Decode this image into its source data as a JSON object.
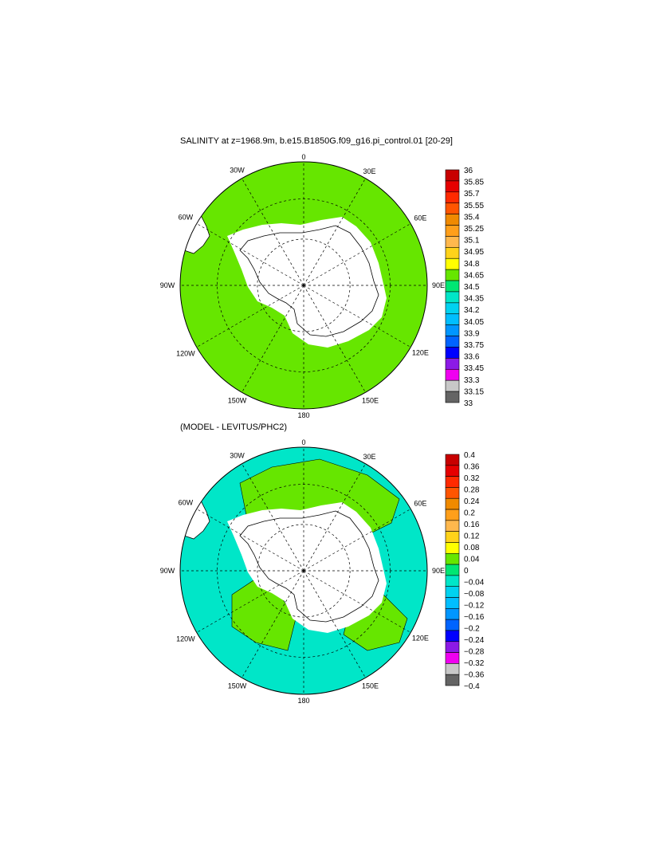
{
  "panels": [
    {
      "title": "SALINITY at z=1968.9m, b.e15.B1850G.f09_g16.pi_control.01 [20-29]",
      "lon_labels": {
        "top": "0",
        "bottom": "180",
        "left": "90W",
        "right": "90E",
        "w30": "30W",
        "w60": "60W",
        "w120": "120W",
        "w150": "150W",
        "e30": "30E",
        "e60": "60E",
        "e120": "120E",
        "e150": "150E"
      },
      "ocean_color": "#66e600",
      "colorbar": {
        "labels": [
          "36",
          "35.85",
          "35.7",
          "35.55",
          "35.4",
          "35.25",
          "35.1",
          "34.95",
          "34.8",
          "34.65",
          "34.5",
          "34.35",
          "34.2",
          "34.05",
          "33.9",
          "33.75",
          "33.6",
          "33.45",
          "33.3",
          "33.15",
          "33"
        ],
        "colors": [
          "#c80000",
          "#e60000",
          "#ff2a00",
          "#ff5500",
          "#f08a00",
          "#ff9f1a",
          "#ffb84d",
          "#ffd21a",
          "#ffff00",
          "#66e600",
          "#00e673",
          "#00e6c8",
          "#00d2f0",
          "#00beff",
          "#0096ff",
          "#0064ff",
          "#0000ff",
          "#8c1ae6",
          "#f000f0",
          "#c8c8c8",
          "#646464"
        ]
      }
    },
    {
      "title": "(MODEL - LEVITUS/PHC2)",
      "lon_labels": {
        "top": "0",
        "bottom": "180",
        "left": "90W",
        "right": "90E",
        "w30": "30W",
        "w60": "60W",
        "w120": "120W",
        "w150": "150W",
        "e30": "30E",
        "e60": "60E",
        "e120": "120E",
        "e150": "150E"
      },
      "ocean_color": "#00e6c8",
      "colorbar": {
        "labels": [
          "0.4",
          "0.36",
          "0.32",
          "0.28",
          "0.24",
          "0.2",
          "0.16",
          "0.12",
          "0.08",
          "0.04",
          "0",
          "−0.04",
          "−0.08",
          "−0.12",
          "−0.16",
          "−0.2",
          "−0.24",
          "−0.28",
          "−0.32",
          "−0.36",
          "−0.4"
        ],
        "colors": [
          "#c80000",
          "#e60000",
          "#ff2a00",
          "#ff5500",
          "#f08a00",
          "#ff9f1a",
          "#ffb84d",
          "#ffd21a",
          "#ffff00",
          "#66e600",
          "#00e673",
          "#00e6c8",
          "#00d2f0",
          "#00beff",
          "#0096ff",
          "#0064ff",
          "#0000ff",
          "#8c1ae6",
          "#f000f0",
          "#c8c8c8",
          "#646464"
        ]
      }
    }
  ]
}
